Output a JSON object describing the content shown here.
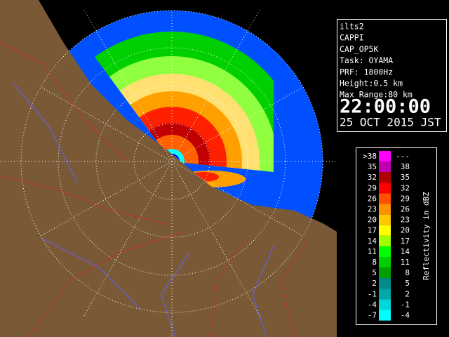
{
  "info": {
    "lines": [
      "ilts2",
      "CAPPI",
      "CAP_OP5K",
      "Task: OYAMA",
      "PRF: 1800Hz",
      "Height:0.5 km",
      "Max Range:80 km"
    ],
    "time": "22:00:00",
    "date": "25 OCT 2015 JST"
  },
  "legend": {
    "title": "Reflectivity in dBZ",
    "rows": [
      {
        "low": ">38",
        "high": "---",
        "color": "#ff00ff"
      },
      {
        "low": "35",
        "high": "38",
        "color": "#c000b0"
      },
      {
        "low": "32",
        "high": "35",
        "color": "#b00000"
      },
      {
        "low": "29",
        "high": "32",
        "color": "#ff0000"
      },
      {
        "low": "26",
        "high": "29",
        "color": "#ff5000"
      },
      {
        "low": "23",
        "high": "26",
        "color": "#ff9000"
      },
      {
        "low": "20",
        "high": "23",
        "color": "#ffc800"
      },
      {
        "low": "17",
        "high": "20",
        "color": "#ffff00"
      },
      {
        "low": "14",
        "high": "17",
        "color": "#a0ff00"
      },
      {
        "low": "11",
        "high": "14",
        "color": "#00ff00"
      },
      {
        "low": "8",
        "high": "11",
        "color": "#00d000"
      },
      {
        "low": "5",
        "high": "8",
        "color": "#00a000"
      },
      {
        "low": "2",
        "high": "5",
        "color": "#008c8c"
      },
      {
        "low": "-1",
        "high": "2",
        "color": "#00a8a8"
      },
      {
        "low": "-4",
        "high": "-1",
        "color": "#00d8d8"
      },
      {
        "low": "-7",
        "high": "-4",
        "color": "#00ffff"
      }
    ]
  }
}
